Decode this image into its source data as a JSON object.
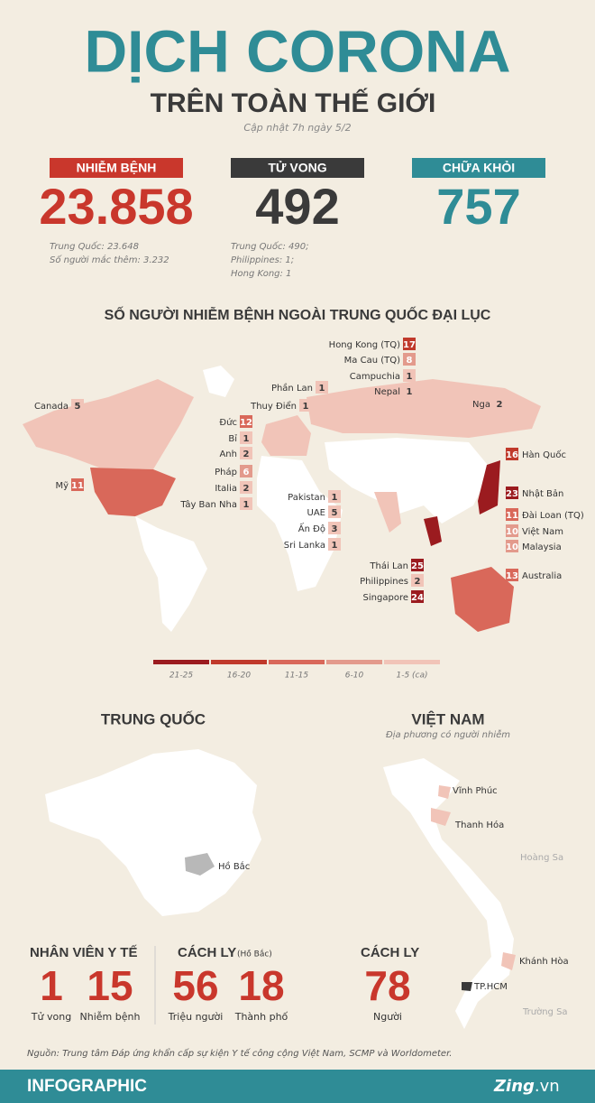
{
  "header": {
    "title": "DỊCH CORONA",
    "subtitle": "TRÊN TOÀN THẾ GIỚI",
    "updated": "Cập nhật 7h ngày 5/2"
  },
  "stats": [
    {
      "label": "NHIỄM BỆNH",
      "value": "23.858",
      "color": "#c9372c",
      "notes": [
        "Trung Quốc: 23.648",
        "Số người mắc thêm: 3.232"
      ]
    },
    {
      "label": "TỬ VONG",
      "value": "492",
      "color": "#3a3a3a",
      "notes": [
        "Trung Quốc: 490;",
        "Philippines: 1;",
        "Hong Kong: 1"
      ]
    },
    {
      "label": "CHỮA KHỎI",
      "value": "757",
      "color": "#2f8c96",
      "notes": []
    }
  ],
  "map": {
    "title": "SỐ NGƯỜI NHIỄM BỆNH NGOÀI TRUNG QUỐC ĐẠI LỤC",
    "countries": [
      {
        "name": "Hong Kong (TQ)",
        "value": 17,
        "color": "#c0392b"
      },
      {
        "name": "Ma Cau (TQ)",
        "value": 8,
        "color": "#e39a8c"
      },
      {
        "name": "Campuchia",
        "value": 1,
        "color": "#f1c4b8"
      },
      {
        "name": "Nepal",
        "value": 1,
        "color": "#f1c4b8"
      },
      {
        "name": "Phần Lan",
        "value": 1,
        "color": "#f1c4b8"
      },
      {
        "name": "Thuy Điển",
        "value": 1,
        "color": "#f1c4b8"
      },
      {
        "name": "Nga",
        "value": 2,
        "color": "#f1c4b8"
      },
      {
        "name": "Canada",
        "value": 5,
        "color": "#f1c4b8"
      },
      {
        "name": "Đức",
        "value": 12,
        "color": "#d9685a"
      },
      {
        "name": "Bỉ",
        "value": 1,
        "color": "#f1c4b8"
      },
      {
        "name": "Anh",
        "value": 2,
        "color": "#f1c4b8"
      },
      {
        "name": "Pháp",
        "value": 6,
        "color": "#e39a8c"
      },
      {
        "name": "Italia",
        "value": 2,
        "color": "#f1c4b8"
      },
      {
        "name": "Tây Ban Nha",
        "value": 1,
        "color": "#f1c4b8"
      },
      {
        "name": "Mỹ",
        "value": 11,
        "color": "#d9685a"
      },
      {
        "name": "Hàn Quốc",
        "value": 16,
        "color": "#c0392b"
      },
      {
        "name": "Nhật Bản",
        "value": 23,
        "color": "#9b1b1f"
      },
      {
        "name": "Đài Loan (TQ)",
        "value": 11,
        "color": "#d9685a"
      },
      {
        "name": "Việt Nam",
        "value": 10,
        "color": "#e39a8c"
      },
      {
        "name": "Malaysia",
        "value": 10,
        "color": "#e39a8c"
      },
      {
        "name": "Australia",
        "value": 13,
        "color": "#d9685a"
      },
      {
        "name": "Pakistan",
        "value": 1,
        "color": "#f1c4b8"
      },
      {
        "name": "UAE",
        "value": 5,
        "color": "#f1c4b8"
      },
      {
        "name": "Ấn Độ",
        "value": 3,
        "color": "#f1c4b8"
      },
      {
        "name": "Sri Lanka",
        "value": 1,
        "color": "#f1c4b8"
      },
      {
        "name": "Thái Lan",
        "value": 25,
        "color": "#9b1b1f"
      },
      {
        "name": "Philippines",
        "value": 2,
        "color": "#f1c4b8"
      },
      {
        "name": "Singapore",
        "value": 24,
        "color": "#9b1b1f"
      }
    ],
    "legend": [
      {
        "label": "21-25",
        "color": "#9b1b1f"
      },
      {
        "label": "16-20",
        "color": "#c0392b"
      },
      {
        "label": "11-15",
        "color": "#d9685a"
      },
      {
        "label": "6-10",
        "color": "#e39a8c"
      },
      {
        "label": "1-5 (ca)",
        "color": "#f1c4b8"
      }
    ]
  },
  "china": {
    "title": "TRUNG QUỐC",
    "region": "Hồ Bắc"
  },
  "vietnam": {
    "title": "VIỆT NAM",
    "subtitle": "Địa phương có người nhiễm",
    "places": [
      "Vĩnh Phúc",
      "Thanh Hóa",
      "Hoàng Sa",
      "Khánh Hòa",
      "TP.HCM",
      "Trường Sa"
    ]
  },
  "bottom": [
    {
      "title": "NHÂN VIÊN Y TẾ",
      "items": [
        {
          "value": "1",
          "label": "Tử vong"
        },
        {
          "value": "15",
          "label": "Nhiễm bệnh"
        }
      ]
    },
    {
      "title": "CÁCH LY",
      "note": "(Hồ Bắc)",
      "items": [
        {
          "value": "56",
          "label": "Triệu người"
        },
        {
          "value": "18",
          "label": "Thành phố"
        }
      ]
    },
    {
      "title": "CÁCH LY",
      "items": [
        {
          "value": "78",
          "label": "Người"
        }
      ]
    }
  ],
  "source": "Nguồn: Trung tâm Đáp ứng khẩn cấp sự kiện Y tế công cộng Việt Nam, SCMP và Worldometer.",
  "footer": {
    "label": "INFOGRAPHIC",
    "brand": "Zing",
    "domain": ".vn"
  }
}
